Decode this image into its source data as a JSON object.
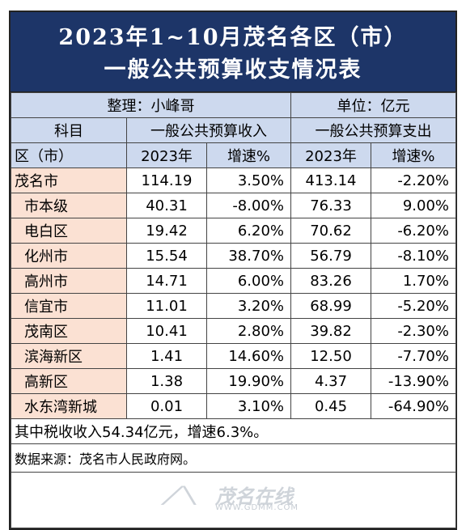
{
  "title": {
    "line1": "2023年1~10月茂名各区（市）",
    "line2": "一般公共预算收支情况表"
  },
  "meta": {
    "compiler": "整理：小峰哥",
    "unit": "单位：亿元"
  },
  "headers": {
    "subject": "科目",
    "revenue_group": "一般公共预算收入",
    "expense_group": "一般公共预算支出",
    "region": "区（市）",
    "year_rev": "2023年",
    "growth_rev": "增速%",
    "year_exp": "2023年",
    "growth_exp": "增速%"
  },
  "rows": [
    {
      "name": "茂名市",
      "rev": "114.19",
      "rev_g": "3.50%",
      "exp": "413.14",
      "exp_g": "-2.20%"
    },
    {
      "name": "市本级",
      "rev": "40.31",
      "rev_g": "-8.00%",
      "exp": "76.33",
      "exp_g": "9.00%"
    },
    {
      "name": "电白区",
      "rev": "19.42",
      "rev_g": "6.20%",
      "exp": "70.62",
      "exp_g": "-6.20%"
    },
    {
      "name": "化州市",
      "rev": "15.54",
      "rev_g": "38.70%",
      "exp": "56.79",
      "exp_g": "-8.10%"
    },
    {
      "name": "高州市",
      "rev": "14.71",
      "rev_g": "6.00%",
      "exp": "83.26",
      "exp_g": "1.70%"
    },
    {
      "name": "信宜市",
      "rev": "11.01",
      "rev_g": "3.20%",
      "exp": "68.99",
      "exp_g": "-5.20%"
    },
    {
      "name": "茂南区",
      "rev": "10.41",
      "rev_g": "2.80%",
      "exp": "39.82",
      "exp_g": "-2.30%"
    },
    {
      "name": "滨海新区",
      "rev": "1.41",
      "rev_g": "14.60%",
      "exp": "12.50",
      "exp_g": "-7.70%"
    },
    {
      "name": "高新区",
      "rev": "1.38",
      "rev_g": "19.90%",
      "exp": "4.37",
      "exp_g": "-13.90%"
    },
    {
      "name": "水东湾新城",
      "rev": "0.01",
      "rev_g": "3.10%",
      "exp": "0.45",
      "exp_g": "-64.90%"
    }
  ],
  "note": "其中税收收入54.34亿元，增速6.3%。",
  "source": "数据来源：茂名市人民政府网。",
  "watermark": {
    "brand": "茂名在线",
    "url": "WWW.GDMM.COM"
  },
  "colors": {
    "title_bg": "#1d3568",
    "header_bg": "#cdd9ee",
    "name_bg": "#fbe1d3"
  }
}
